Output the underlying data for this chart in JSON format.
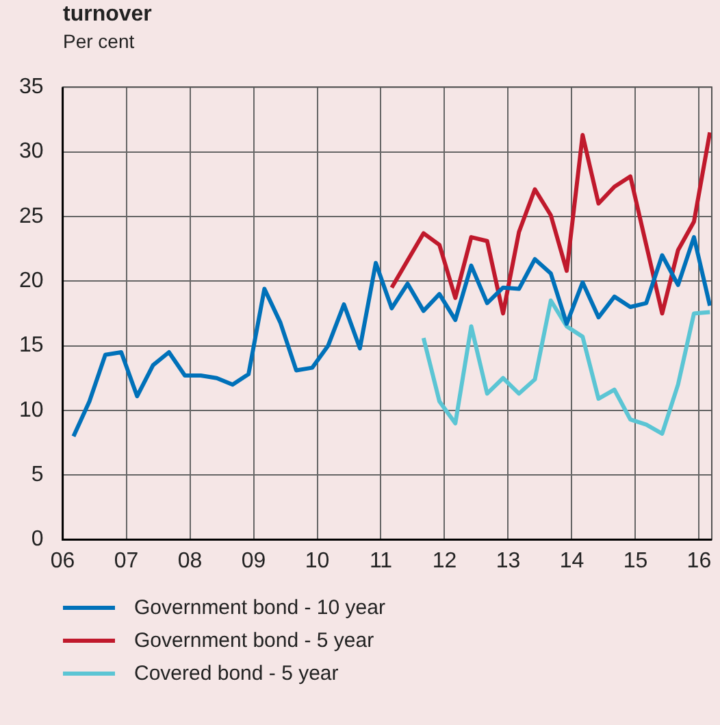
{
  "chart_data": {
    "type": "line",
    "title": "turnover",
    "ylabel": "Per cent",
    "x": [
      2006.17,
      2006.42,
      2006.67,
      2006.92,
      2007.17,
      2007.42,
      2007.67,
      2007.92,
      2008.17,
      2008.42,
      2008.67,
      2008.92,
      2009.17,
      2009.42,
      2009.67,
      2009.92,
      2010.17,
      2010.42,
      2010.67,
      2010.92,
      2011.17,
      2011.42,
      2011.67,
      2011.92,
      2012.17,
      2012.42,
      2012.67,
      2012.92,
      2013.17,
      2013.42,
      2013.67,
      2013.92,
      2014.17,
      2014.42,
      2014.67,
      2014.92,
      2015.17,
      2015.42,
      2015.67,
      2015.92,
      2016.17
    ],
    "series": [
      {
        "name": "Government bond - 10 year",
        "color": "#0071b9",
        "values": [
          8.0,
          10.7,
          14.3,
          14.5,
          11.1,
          13.5,
          14.5,
          12.7,
          12.7,
          12.5,
          12.0,
          12.8,
          19.4,
          16.8,
          13.1,
          13.3,
          15.0,
          18.2,
          14.8,
          21.4,
          17.9,
          19.8,
          17.7,
          19.0,
          17.0,
          21.2,
          18.3,
          19.5,
          19.4,
          21.7,
          20.6,
          16.7,
          19.9,
          17.2,
          18.8,
          18.0,
          18.3,
          22.0,
          19.7,
          23.4,
          18.1
        ]
      },
      {
        "name": "Government bond - 5 year",
        "color": "#c0192c",
        "values": [
          null,
          null,
          null,
          null,
          null,
          null,
          null,
          null,
          null,
          null,
          null,
          null,
          null,
          null,
          null,
          null,
          null,
          null,
          null,
          null,
          19.5,
          21.6,
          23.7,
          22.8,
          18.7,
          23.4,
          23.1,
          17.5,
          23.8,
          27.1,
          25.1,
          20.8,
          31.3,
          26.0,
          27.3,
          28.1,
          22.8,
          17.5,
          22.4,
          24.6,
          31.5
        ]
      },
      {
        "name": "Covered bond - 5 year",
        "color": "#5bc5d4",
        "values": [
          null,
          null,
          null,
          null,
          null,
          null,
          null,
          null,
          null,
          null,
          null,
          null,
          null,
          null,
          null,
          null,
          null,
          null,
          null,
          null,
          null,
          null,
          15.6,
          10.7,
          9.0,
          16.5,
          11.3,
          12.5,
          11.3,
          12.4,
          18.5,
          16.5,
          15.7,
          10.9,
          11.6,
          9.3,
          8.9,
          8.2,
          12.0,
          17.5,
          17.6
        ]
      }
    ],
    "xlim": [
      2006,
      2016.2
    ],
    "xticks": [
      {
        "value": 2006,
        "label": "06"
      },
      {
        "value": 2007,
        "label": "07"
      },
      {
        "value": 2008,
        "label": "08"
      },
      {
        "value": 2009,
        "label": "09"
      },
      {
        "value": 2010,
        "label": "10"
      },
      {
        "value": 2011,
        "label": "11"
      },
      {
        "value": 2012,
        "label": "12"
      },
      {
        "value": 2013,
        "label": "13"
      },
      {
        "value": 2014,
        "label": "14"
      },
      {
        "value": 2015,
        "label": "15"
      },
      {
        "value": 2016,
        "label": "16"
      }
    ],
    "ylim": [
      0,
      35
    ],
    "yticks": [
      0,
      5,
      10,
      15,
      20,
      25,
      30,
      35
    ],
    "grid": true,
    "legend": "bottom",
    "marker": "none",
    "line_style": "solid"
  }
}
